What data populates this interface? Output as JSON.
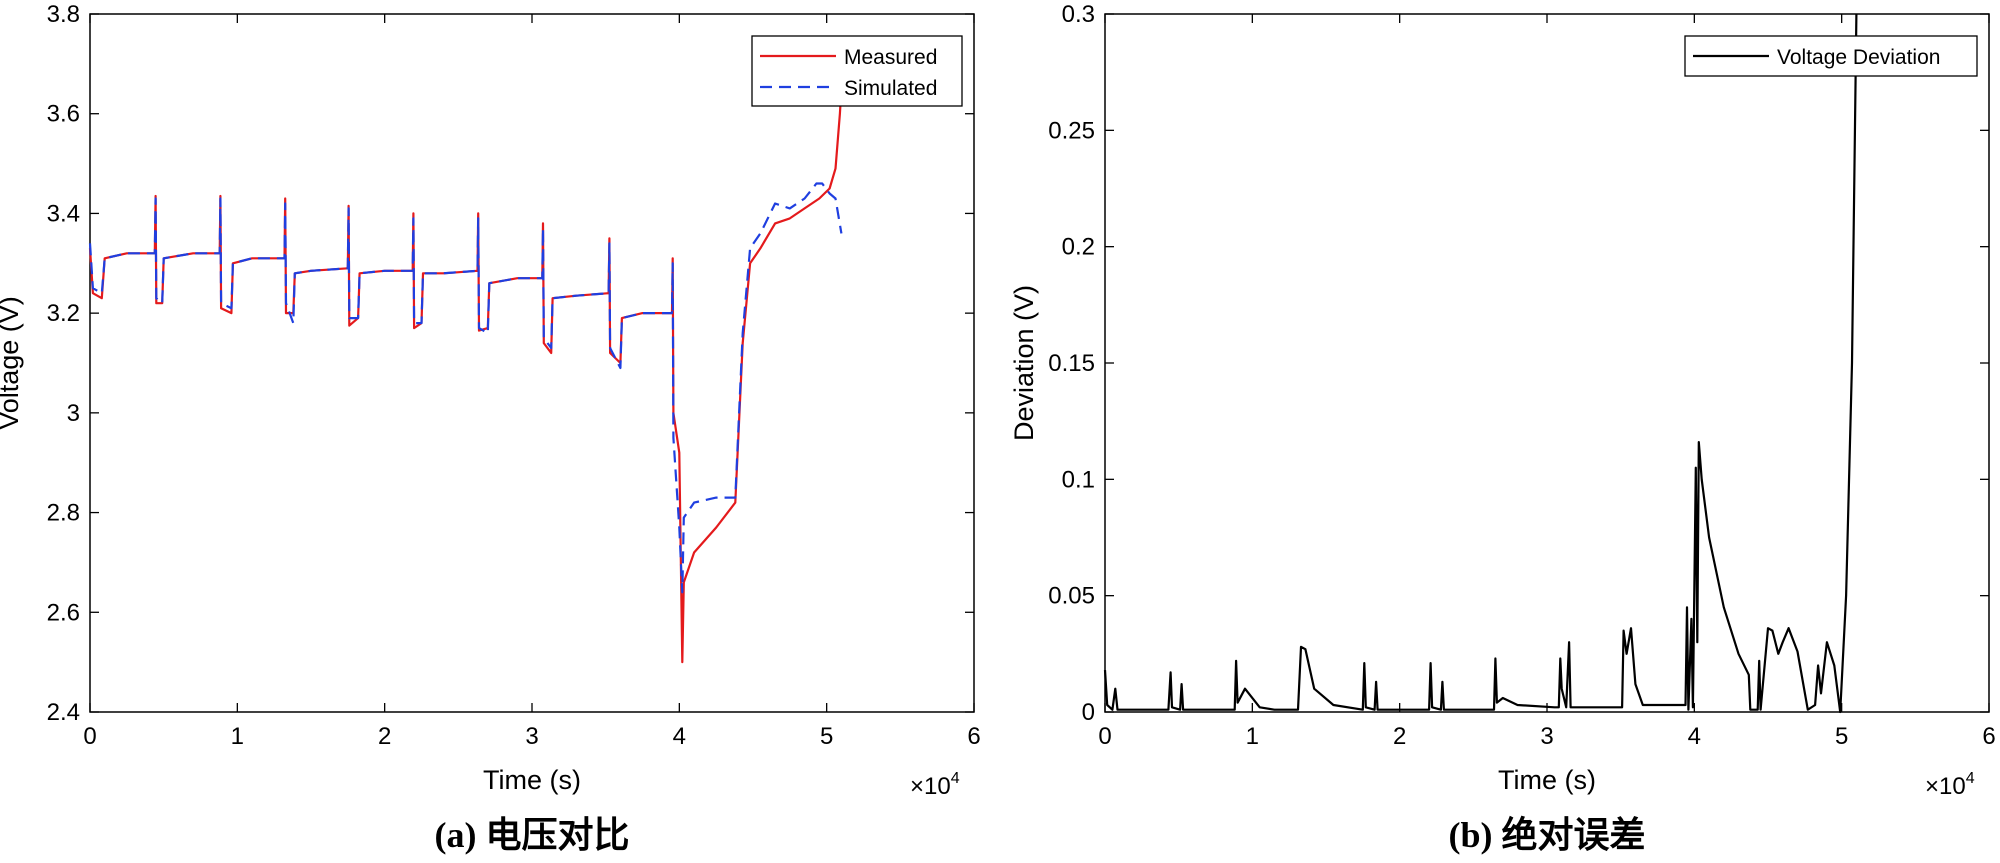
{
  "chart_data": [
    {
      "type": "line",
      "caption": "(a) 电压对比",
      "xlabel": "Time (s)",
      "ylabel": "Voltage (V)",
      "xlim": [
        0,
        60000
      ],
      "ylim": [
        2.4,
        3.8
      ],
      "x_ticks": [
        0,
        10000,
        20000,
        30000,
        40000,
        50000,
        60000
      ],
      "x_tick_labels": [
        "0",
        "1",
        "2",
        "3",
        "4",
        "5",
        "6"
      ],
      "y_ticks": [
        2.4,
        2.6,
        2.8,
        3.0,
        3.2,
        3.4,
        3.6,
        3.8
      ],
      "y_tick_labels": [
        "2.4",
        "2.6",
        "2.8",
        "3",
        "3.2",
        "3.4",
        "3.6",
        "3.8"
      ],
      "x_multiplier": "×10",
      "x_multiplier_exp": "4",
      "legend_position": "top-right",
      "series": [
        {
          "name": "Measured",
          "color": "#e41a1c",
          "style": "solid",
          "points": [
            [
              0,
              3.33
            ],
            [
              200,
              3.24
            ],
            [
              800,
              3.23
            ],
            [
              1000,
              3.31
            ],
            [
              2500,
              3.32
            ],
            [
              4400,
              3.32
            ],
            [
              4450,
              3.435
            ],
            [
              4500,
              3.22
            ],
            [
              4900,
              3.22
            ],
            [
              5000,
              3.31
            ],
            [
              7000,
              3.32
            ],
            [
              8800,
              3.32
            ],
            [
              8850,
              3.435
            ],
            [
              8900,
              3.21
            ],
            [
              9600,
              3.2
            ],
            [
              9700,
              3.3
            ],
            [
              11000,
              3.31
            ],
            [
              13200,
              3.31
            ],
            [
              13250,
              3.43
            ],
            [
              13300,
              3.2
            ],
            [
              13800,
              3.2
            ],
            [
              13900,
              3.28
            ],
            [
              15000,
              3.285
            ],
            [
              17500,
              3.29
            ],
            [
              17550,
              3.415
            ],
            [
              17600,
              3.175
            ],
            [
              18200,
              3.19
            ],
            [
              18300,
              3.28
            ],
            [
              20000,
              3.285
            ],
            [
              21900,
              3.285
            ],
            [
              21950,
              3.4
            ],
            [
              22000,
              3.17
            ],
            [
              22500,
              3.18
            ],
            [
              22600,
              3.28
            ],
            [
              24000,
              3.28
            ],
            [
              26300,
              3.285
            ],
            [
              26350,
              3.4
            ],
            [
              26400,
              3.165
            ],
            [
              27000,
              3.17
            ],
            [
              27100,
              3.26
            ],
            [
              29000,
              3.27
            ],
            [
              30700,
              3.27
            ],
            [
              30750,
              3.38
            ],
            [
              30800,
              3.14
            ],
            [
              31300,
              3.12
            ],
            [
              31400,
              3.23
            ],
            [
              33000,
              3.235
            ],
            [
              35200,
              3.24
            ],
            [
              35250,
              3.35
            ],
            [
              35300,
              3.12
            ],
            [
              36000,
              3.1
            ],
            [
              36100,
              3.19
            ],
            [
              37500,
              3.2
            ],
            [
              39500,
              3.2
            ],
            [
              39550,
              3.31
            ],
            [
              39600,
              3.0
            ],
            [
              40000,
              2.92
            ],
            [
              40200,
              2.5
            ],
            [
              40300,
              2.66
            ],
            [
              41000,
              2.72
            ],
            [
              42500,
              2.77
            ],
            [
              43800,
              2.82
            ],
            [
              44300,
              3.14
            ],
            [
              44800,
              3.3
            ],
            [
              45500,
              3.33
            ],
            [
              46500,
              3.38
            ],
            [
              47500,
              3.39
            ],
            [
              48500,
              3.41
            ],
            [
              49500,
              3.43
            ],
            [
              50200,
              3.45
            ],
            [
              50600,
              3.49
            ],
            [
              50900,
              3.6
            ],
            [
              51000,
              3.65
            ]
          ]
        },
        {
          "name": "Simulated",
          "color": "#1f3fe0",
          "style": "dashed",
          "points": [
            [
              0,
              3.34
            ],
            [
              200,
              3.25
            ],
            [
              800,
              3.24
            ],
            [
              1000,
              3.31
            ],
            [
              2500,
              3.32
            ],
            [
              4400,
              3.32
            ],
            [
              4450,
              3.43
            ],
            [
              4500,
              3.23
            ],
            [
              4900,
              3.22
            ],
            [
              5000,
              3.31
            ],
            [
              7000,
              3.32
            ],
            [
              8800,
              3.32
            ],
            [
              8850,
              3.43
            ],
            [
              8900,
              3.22
            ],
            [
              9600,
              3.21
            ],
            [
              9700,
              3.3
            ],
            [
              11000,
              3.31
            ],
            [
              13200,
              3.31
            ],
            [
              13250,
              3.42
            ],
            [
              13300,
              3.22
            ],
            [
              13800,
              3.18
            ],
            [
              13900,
              3.28
            ],
            [
              15000,
              3.285
            ],
            [
              17500,
              3.29
            ],
            [
              17550,
              3.41
            ],
            [
              17600,
              3.19
            ],
            [
              18200,
              3.19
            ],
            [
              18300,
              3.28
            ],
            [
              20000,
              3.285
            ],
            [
              21900,
              3.285
            ],
            [
              21950,
              3.39
            ],
            [
              22000,
              3.18
            ],
            [
              22500,
              3.18
            ],
            [
              22600,
              3.28
            ],
            [
              24000,
              3.28
            ],
            [
              26300,
              3.285
            ],
            [
              26350,
              3.39
            ],
            [
              26400,
              3.17
            ],
            [
              27000,
              3.16
            ],
            [
              27100,
              3.26
            ],
            [
              29000,
              3.27
            ],
            [
              30700,
              3.27
            ],
            [
              30750,
              3.37
            ],
            [
              30800,
              3.15
            ],
            [
              31300,
              3.13
            ],
            [
              31400,
              3.23
            ],
            [
              33000,
              3.235
            ],
            [
              35200,
              3.24
            ],
            [
              35250,
              3.34
            ],
            [
              35300,
              3.13
            ],
            [
              36000,
              3.09
            ],
            [
              36100,
              3.19
            ],
            [
              37500,
              3.2
            ],
            [
              39500,
              3.2
            ],
            [
              39550,
              3.3
            ],
            [
              39600,
              2.95
            ],
            [
              40000,
              2.77
            ],
            [
              40200,
              2.64
            ],
            [
              40300,
              2.79
            ],
            [
              41000,
              2.82
            ],
            [
              42500,
              2.83
            ],
            [
              43800,
              2.83
            ],
            [
              44300,
              3.16
            ],
            [
              44800,
              3.33
            ],
            [
              45500,
              3.36
            ],
            [
              46500,
              3.42
            ],
            [
              47500,
              3.41
            ],
            [
              48500,
              3.43
            ],
            [
              49300,
              3.46
            ],
            [
              49700,
              3.46
            ],
            [
              50200,
              3.44
            ],
            [
              50600,
              3.43
            ],
            [
              51000,
              3.36
            ]
          ]
        }
      ]
    },
    {
      "type": "line",
      "caption": "(b) 绝对误差",
      "xlabel": "Time (s)",
      "ylabel": "Deviation (V)",
      "xlim": [
        0,
        60000
      ],
      "ylim": [
        0,
        0.3
      ],
      "x_ticks": [
        0,
        10000,
        20000,
        30000,
        40000,
        50000,
        60000
      ],
      "x_tick_labels": [
        "0",
        "1",
        "2",
        "3",
        "4",
        "5",
        "6"
      ],
      "y_ticks": [
        0,
        0.05,
        0.1,
        0.15,
        0.2,
        0.25,
        0.3
      ],
      "y_tick_labels": [
        "0",
        "0.05",
        "0.1",
        "0.15",
        "0.2",
        "0.25",
        "0.3"
      ],
      "x_multiplier": "×10",
      "x_multiplier_exp": "4",
      "legend_position": "top-right",
      "series": [
        {
          "name": "Voltage Deviation",
          "color": "#000000",
          "style": "solid",
          "points": [
            [
              0,
              0.018
            ],
            [
              150,
              0.003
            ],
            [
              500,
              0.001
            ],
            [
              700,
              0.01
            ],
            [
              850,
              0.001
            ],
            [
              4300,
              0.001
            ],
            [
              4450,
              0.017
            ],
            [
              4550,
              0.002
            ],
            [
              5100,
              0.001
            ],
            [
              5200,
              0.012
            ],
            [
              5300,
              0.001
            ],
            [
              8800,
              0.001
            ],
            [
              8900,
              0.022
            ],
            [
              9000,
              0.004
            ],
            [
              9500,
              0.01
            ],
            [
              10500,
              0.002
            ],
            [
              11500,
              0.001
            ],
            [
              13100,
              0.001
            ],
            [
              13300,
              0.028
            ],
            [
              13600,
              0.027
            ],
            [
              14200,
              0.01
            ],
            [
              15500,
              0.003
            ],
            [
              17500,
              0.001
            ],
            [
              17600,
              0.021
            ],
            [
              17700,
              0.002
            ],
            [
              18300,
              0.001
            ],
            [
              18400,
              0.013
            ],
            [
              18500,
              0.001
            ],
            [
              22000,
              0.001
            ],
            [
              22100,
              0.021
            ],
            [
              22200,
              0.002
            ],
            [
              22800,
              0.001
            ],
            [
              22900,
              0.013
            ],
            [
              23000,
              0.001
            ],
            [
              26400,
              0.001
            ],
            [
              26500,
              0.023
            ],
            [
              26600,
              0.004
            ],
            [
              27000,
              0.006
            ],
            [
              28000,
              0.003
            ],
            [
              30500,
              0.002
            ],
            [
              30800,
              0.002
            ],
            [
              30900,
              0.023
            ],
            [
              31000,
              0.01
            ],
            [
              31300,
              0.002
            ],
            [
              31500,
              0.03
            ],
            [
              31600,
              0.002
            ],
            [
              35100,
              0.002
            ],
            [
              35200,
              0.035
            ],
            [
              35400,
              0.025
            ],
            [
              35700,
              0.036
            ],
            [
              36000,
              0.012
            ],
            [
              36500,
              0.003
            ],
            [
              39400,
              0.003
            ],
            [
              39500,
              0.045
            ],
            [
              39600,
              0.001
            ],
            [
              39800,
              0.04
            ],
            [
              39900,
              0.002
            ],
            [
              40100,
              0.105
            ],
            [
              40200,
              0.03
            ],
            [
              40300,
              0.116
            ],
            [
              40500,
              0.1
            ],
            [
              41000,
              0.075
            ],
            [
              42000,
              0.045
            ],
            [
              43000,
              0.025
            ],
            [
              43700,
              0.016
            ],
            [
              43800,
              0.001
            ],
            [
              44300,
              0.001
            ],
            [
              44400,
              0.022
            ],
            [
              44500,
              0.001
            ],
            [
              45000,
              0.036
            ],
            [
              45300,
              0.035
            ],
            [
              45700,
              0.025
            ],
            [
              46000,
              0.03
            ],
            [
              46400,
              0.036
            ],
            [
              47000,
              0.026
            ],
            [
              47700,
              0.001
            ],
            [
              48200,
              0.003
            ],
            [
              48400,
              0.02
            ],
            [
              48600,
              0.008
            ],
            [
              49000,
              0.03
            ],
            [
              49500,
              0.02
            ],
            [
              49900,
              0.0
            ],
            [
              50300,
              0.05
            ],
            [
              50700,
              0.15
            ],
            [
              51000,
              0.3
            ]
          ]
        }
      ]
    }
  ]
}
